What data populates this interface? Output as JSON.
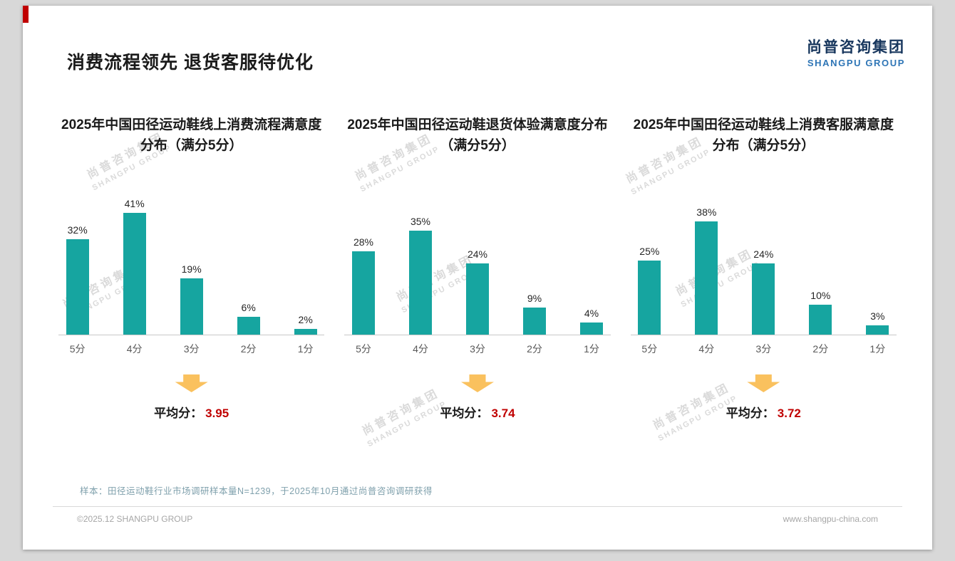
{
  "page": {
    "title": "消费流程领先 退货客服待优化",
    "logo_cn": "尚普咨询集团",
    "logo_en": "SHANGPU GROUP",
    "watermark_cn": "尚普咨询集团",
    "watermark_en": "SHANGPU GROUP",
    "sample_note": "样本：田径运动鞋行业市场调研样本量N=1239，于2025年10月通过尚普咨询调研获得",
    "footer_left": "©2025.12 SHANGPU GROUP",
    "footer_right": "www.shangpu-china.com"
  },
  "colors": {
    "bar": "#16a5a0",
    "accent_red": "#c00000",
    "arrow_yellow": "#fac15e",
    "logo_navy": "#17365d",
    "logo_blue": "#2e75b6"
  },
  "chart_data": [
    {
      "type": "bar",
      "title": "2025年中国田径运动鞋线上消费流程满意度分布（满分5分）",
      "categories": [
        "5分",
        "4分",
        "3分",
        "2分",
        "1分"
      ],
      "values": [
        32,
        41,
        19,
        6,
        2
      ],
      "value_labels": [
        "32%",
        "41%",
        "19%",
        "6%",
        "2%"
      ],
      "ylim": [
        0,
        45
      ],
      "avg_label": "平均分：",
      "avg_value": "3.95"
    },
    {
      "type": "bar",
      "title": "2025年中国田径运动鞋退货体验满意度分布（满分5分）",
      "categories": [
        "5分",
        "4分",
        "3分",
        "2分",
        "1分"
      ],
      "values": [
        28,
        35,
        24,
        9,
        4
      ],
      "value_labels": [
        "28%",
        "35%",
        "24%",
        "9%",
        "4%"
      ],
      "ylim": [
        0,
        45
      ],
      "avg_label": "平均分：",
      "avg_value": "3.74"
    },
    {
      "type": "bar",
      "title": "2025年中国田径运动鞋线上消费客服满意度分布（满分5分）",
      "categories": [
        "5分",
        "4分",
        "3分",
        "2分",
        "1分"
      ],
      "values": [
        25,
        38,
        24,
        10,
        3
      ],
      "value_labels": [
        "25%",
        "38%",
        "24%",
        "10%",
        "3%"
      ],
      "ylim": [
        0,
        45
      ],
      "avg_label": "平均分：",
      "avg_value": "3.72"
    }
  ]
}
